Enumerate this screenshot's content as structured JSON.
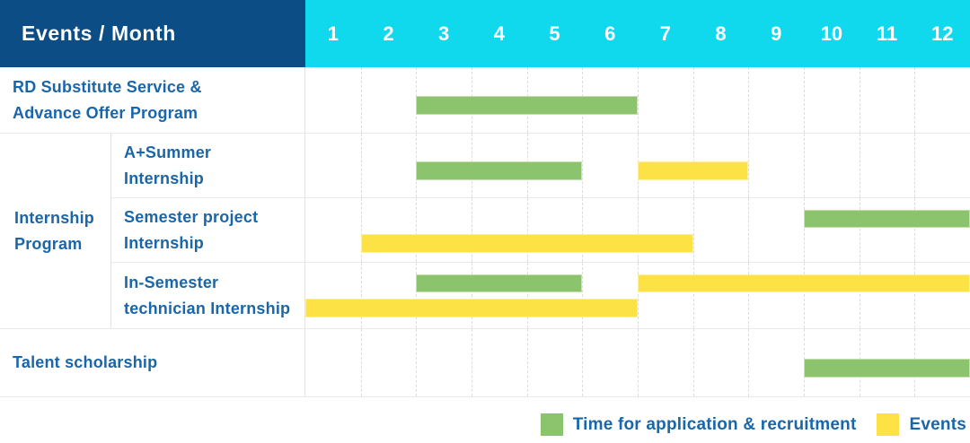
{
  "header": {
    "title": "Events / Month",
    "months": [
      "1",
      "2",
      "3",
      "4",
      "5",
      "6",
      "7",
      "8",
      "9",
      "10",
      "11",
      "12"
    ]
  },
  "colors": {
    "navy": "#0b4d84",
    "cyan": "#10d9ee",
    "label_blue": "#1a66aa",
    "green": "#8bc46c",
    "yellow": "#fde245"
  },
  "group": {
    "label": "Internship\nProgram"
  },
  "rows": [
    {
      "id": "rd-substitute",
      "label": "RD Substitute Service &\nAdvance Offer Program",
      "bars": [
        {
          "type": "green",
          "start": 3,
          "end": 6,
          "line": "single"
        }
      ]
    },
    {
      "id": "a-plus-summer",
      "label": "A+Summer\nInternship",
      "bars": [
        {
          "type": "green",
          "start": 3,
          "end": 5,
          "line": "single"
        },
        {
          "type": "yellow",
          "start": 7,
          "end": 8,
          "line": "single"
        }
      ]
    },
    {
      "id": "semester-project",
      "label": "Semester project\nInternship",
      "bars": [
        {
          "type": "green",
          "start": 10,
          "end": 12,
          "line": "top"
        },
        {
          "type": "yellow",
          "start": 2,
          "end": 7,
          "line": "bottom"
        }
      ]
    },
    {
      "id": "in-semester-technician",
      "label": "In-Semester\ntechnician Internship",
      "bars": [
        {
          "type": "green",
          "start": 3,
          "end": 5,
          "line": "top"
        },
        {
          "type": "yellow",
          "start": 7,
          "end": 12,
          "line": "top"
        },
        {
          "type": "yellow",
          "start": 1,
          "end": 6,
          "line": "bottom"
        }
      ]
    },
    {
      "id": "talent-scholarship",
      "label": "Talent scholarship",
      "bars": [
        {
          "type": "green",
          "start": 10,
          "end": 12,
          "line": "single"
        }
      ]
    }
  ],
  "legend": [
    {
      "type": "green",
      "label": "Time for application & recruitment"
    },
    {
      "type": "yellow",
      "label": "Events"
    }
  ],
  "chart_data": {
    "type": "bar",
    "subtype": "gantt-schedule",
    "title": "Events / Month",
    "x_ticks": [
      "1",
      "2",
      "3",
      "4",
      "5",
      "6",
      "7",
      "8",
      "9",
      "10",
      "11",
      "12"
    ],
    "x_range": [
      1,
      12
    ],
    "legend_position": "bottom-right",
    "grid": "dashed-vertical-month-lines",
    "series_legend": [
      {
        "name": "Time for application & recruitment",
        "color": "#8bc46c"
      },
      {
        "name": "Events",
        "color": "#fde245"
      }
    ],
    "rows": [
      {
        "category": "RD Substitute Service & Advance Offer Program",
        "group": null,
        "spans": [
          {
            "series": "Time for application & recruitment",
            "months": [
              3,
              6
            ]
          }
        ]
      },
      {
        "category": "A+Summer Internship",
        "group": "Internship Program",
        "spans": [
          {
            "series": "Time for application & recruitment",
            "months": [
              3,
              5
            ]
          },
          {
            "series": "Events",
            "months": [
              7,
              8
            ]
          }
        ]
      },
      {
        "category": "Semester project Internship",
        "group": "Internship Program",
        "spans": [
          {
            "series": "Time for application & recruitment",
            "months": [
              10,
              12
            ]
          },
          {
            "series": "Events",
            "months": [
              2,
              7
            ]
          }
        ]
      },
      {
        "category": "In-Semester technician Internship",
        "group": "Internship Program",
        "spans": [
          {
            "series": "Time for application & recruitment",
            "months": [
              3,
              5
            ]
          },
          {
            "series": "Events",
            "months": [
              7,
              12
            ]
          },
          {
            "series": "Events",
            "months": [
              1,
              6
            ]
          }
        ]
      },
      {
        "category": "Talent scholarship",
        "group": null,
        "spans": [
          {
            "series": "Time for application & recruitment",
            "months": [
              10,
              12
            ]
          }
        ]
      }
    ]
  }
}
